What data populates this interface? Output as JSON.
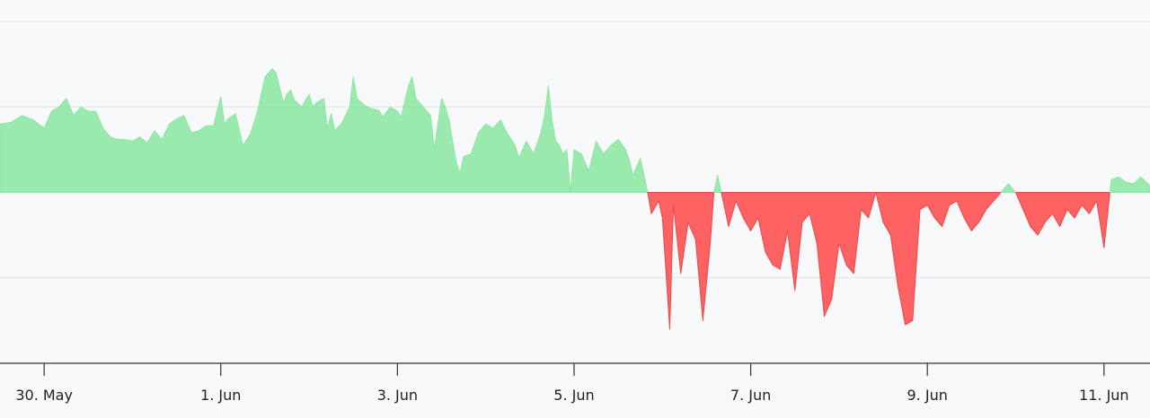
{
  "chart_data": {
    "type": "area",
    "x_axis": {
      "type": "date",
      "ticks": [
        {
          "date": "2024-05-30",
          "label": "30. May"
        },
        {
          "date": "2024-06-01",
          "label": "1. Jun"
        },
        {
          "date": "2024-06-03",
          "label": "3. Jun"
        },
        {
          "date": "2024-06-05",
          "label": "5. Jun"
        },
        {
          "date": "2024-06-07",
          "label": "7. Jun"
        },
        {
          "date": "2024-06-09",
          "label": "9. Jun"
        },
        {
          "date": "2024-06-11",
          "label": "11. Jun"
        }
      ],
      "range": [
        "2024-05-29T12:00",
        "2024-06-11T12:30"
      ]
    },
    "y_axis": {
      "range": [
        -2,
        2
      ],
      "gridlines": [
        2,
        1,
        0,
        -1
      ],
      "labels_visible": false
    },
    "grid": true,
    "legend": "none",
    "positive_color": "#7be495",
    "negative_color": "#ff5a5a",
    "series": [
      {
        "points": [
          [
            "2024-05-29T12:00",
            0.8
          ],
          [
            "2024-05-29T15:00",
            0.82
          ],
          [
            "2024-05-29T18:00",
            0.9
          ],
          [
            "2024-05-29T21:00",
            0.85
          ],
          [
            "2024-05-30T00:00",
            0.75
          ],
          [
            "2024-05-30T02:00",
            0.95
          ],
          [
            "2024-05-30T04:00",
            1.0
          ],
          [
            "2024-05-30T06:00",
            1.1
          ],
          [
            "2024-05-30T08:00",
            0.9
          ],
          [
            "2024-05-30T10:00",
            1.0
          ],
          [
            "2024-05-30T12:00",
            0.95
          ],
          [
            "2024-05-30T14:00",
            0.95
          ],
          [
            "2024-05-30T16:00",
            0.75
          ],
          [
            "2024-05-30T18:00",
            0.65
          ],
          [
            "2024-05-30T20:00",
            0.62
          ],
          [
            "2024-05-30T22:00",
            0.62
          ],
          [
            "2024-05-31T00:00",
            0.6
          ],
          [
            "2024-05-31T02:00",
            0.65
          ],
          [
            "2024-05-31T04:00",
            0.58
          ],
          [
            "2024-05-31T06:00",
            0.72
          ],
          [
            "2024-05-31T08:00",
            0.62
          ],
          [
            "2024-05-31T10:00",
            0.8
          ],
          [
            "2024-05-31T12:00",
            0.86
          ],
          [
            "2024-05-31T14:00",
            0.9
          ],
          [
            "2024-05-31T16:00",
            0.7
          ],
          [
            "2024-05-31T18:00",
            0.72
          ],
          [
            "2024-05-31T20:00",
            0.78
          ],
          [
            "2024-05-31T22:00",
            0.78
          ],
          [
            "2024-06-01T00:00",
            1.12
          ],
          [
            "2024-06-01T01:00",
            0.8
          ],
          [
            "2024-06-01T02:00",
            0.86
          ],
          [
            "2024-06-01T04:00",
            0.92
          ],
          [
            "2024-06-01T06:00",
            0.55
          ],
          [
            "2024-06-01T08:00",
            0.68
          ],
          [
            "2024-06-01T10:00",
            0.95
          ],
          [
            "2024-06-01T12:00",
            1.35
          ],
          [
            "2024-06-01T14:00",
            1.45
          ],
          [
            "2024-06-01T15:00",
            1.4
          ],
          [
            "2024-06-01T17:00",
            1.05
          ],
          [
            "2024-06-01T18:00",
            1.15
          ],
          [
            "2024-06-01T19:00",
            1.2
          ],
          [
            "2024-06-01T20:00",
            1.08
          ],
          [
            "2024-06-01T22:00",
            1.0
          ],
          [
            "2024-06-02T00:00",
            1.15
          ],
          [
            "2024-06-02T01:00",
            1.0
          ],
          [
            "2024-06-02T02:00",
            1.05
          ],
          [
            "2024-06-02T04:00",
            1.1
          ],
          [
            "2024-06-02T05:00",
            0.75
          ],
          [
            "2024-06-02T06:00",
            0.92
          ],
          [
            "2024-06-02T07:00",
            0.72
          ],
          [
            "2024-06-02T09:00",
            0.82
          ],
          [
            "2024-06-02T11:00",
            1.0
          ],
          [
            "2024-06-02T12:00",
            1.35
          ],
          [
            "2024-06-02T13:00",
            1.1
          ],
          [
            "2024-06-02T15:00",
            1.02
          ],
          [
            "2024-06-02T17:00",
            0.98
          ],
          [
            "2024-06-02T19:00",
            0.96
          ],
          [
            "2024-06-02T20:00",
            0.88
          ],
          [
            "2024-06-02T22:00",
            1.0
          ],
          [
            "2024-06-03T00:00",
            0.95
          ],
          [
            "2024-06-03T01:00",
            0.88
          ],
          [
            "2024-06-03T03:00",
            1.25
          ],
          [
            "2024-06-03T04:00",
            1.35
          ],
          [
            "2024-06-03T05:00",
            1.1
          ],
          [
            "2024-06-03T07:00",
            1.0
          ],
          [
            "2024-06-03T09:00",
            0.9
          ],
          [
            "2024-06-03T10:00",
            0.5
          ],
          [
            "2024-06-03T12:00",
            1.1
          ],
          [
            "2024-06-03T13:00",
            1.0
          ],
          [
            "2024-06-03T14:00",
            0.85
          ],
          [
            "2024-06-03T16:00",
            0.35
          ],
          [
            "2024-06-03T17:00",
            0.22
          ],
          [
            "2024-06-03T18:00",
            0.42
          ],
          [
            "2024-06-03T20:00",
            0.45
          ],
          [
            "2024-06-03T22:00",
            0.7
          ],
          [
            "2024-06-04T00:00",
            0.8
          ],
          [
            "2024-06-04T02:00",
            0.75
          ],
          [
            "2024-06-04T04:00",
            0.85
          ],
          [
            "2024-06-04T06:00",
            0.68
          ],
          [
            "2024-06-04T08:00",
            0.55
          ],
          [
            "2024-06-04T09:00",
            0.4
          ],
          [
            "2024-06-04T11:00",
            0.6
          ],
          [
            "2024-06-04T13:00",
            0.45
          ],
          [
            "2024-06-04T15:00",
            0.7
          ],
          [
            "2024-06-04T16:00",
            0.9
          ],
          [
            "2024-06-04T17:00",
            1.25
          ],
          [
            "2024-06-04T18:00",
            0.85
          ],
          [
            "2024-06-04T19:00",
            0.6
          ],
          [
            "2024-06-04T20:00",
            0.55
          ],
          [
            "2024-06-04T21:00",
            0.45
          ],
          [
            "2024-06-04T22:00",
            0.5
          ],
          [
            "2024-06-04T23:00",
            0.0
          ],
          [
            "2024-06-05T00:00",
            0.5
          ],
          [
            "2024-06-05T02:00",
            0.45
          ],
          [
            "2024-06-05T04:00",
            0.25
          ],
          [
            "2024-06-05T06:00",
            0.6
          ],
          [
            "2024-06-05T08:00",
            0.45
          ],
          [
            "2024-06-05T10:00",
            0.55
          ],
          [
            "2024-06-05T12:00",
            0.62
          ],
          [
            "2024-06-05T14:00",
            0.5
          ],
          [
            "2024-06-05T15:00",
            0.38
          ],
          [
            "2024-06-05T16:00",
            0.2
          ],
          [
            "2024-06-05T18:00",
            0.4
          ],
          [
            "2024-06-05T20:00",
            0.0
          ],
          [
            "2024-06-05T21:00",
            -0.25
          ],
          [
            "2024-06-05T23:00",
            -0.1
          ],
          [
            "2024-06-06T00:00",
            -0.3
          ],
          [
            "2024-06-06T02:00",
            -1.6
          ],
          [
            "2024-06-06T03:00",
            -0.15
          ],
          [
            "2024-06-06T05:00",
            -0.95
          ],
          [
            "2024-06-06T07:00",
            -0.35
          ],
          [
            "2024-06-06T09:00",
            -0.55
          ],
          [
            "2024-06-06T11:00",
            -1.5
          ],
          [
            "2024-06-06T13:00",
            -0.6
          ],
          [
            "2024-06-06T14:00",
            0.0
          ],
          [
            "2024-06-06T15:00",
            0.2
          ],
          [
            "2024-06-06T16:00",
            0.0
          ],
          [
            "2024-06-06T18:00",
            -0.4
          ],
          [
            "2024-06-06T20:00",
            -0.1
          ],
          [
            "2024-06-06T22:00",
            -0.3
          ],
          [
            "2024-06-07T00:00",
            -0.45
          ],
          [
            "2024-06-07T02:00",
            -0.3
          ],
          [
            "2024-06-07T04:00",
            -0.7
          ],
          [
            "2024-06-07T06:00",
            -0.85
          ],
          [
            "2024-06-07T08:00",
            -0.9
          ],
          [
            "2024-06-07T10:00",
            -0.45
          ],
          [
            "2024-06-07T12:00",
            -1.15
          ],
          [
            "2024-06-07T14:00",
            -0.35
          ],
          [
            "2024-06-07T16:00",
            -0.25
          ],
          [
            "2024-06-07T18:00",
            -0.6
          ],
          [
            "2024-06-07T20:00",
            -1.45
          ],
          [
            "2024-06-07T22:00",
            -1.25
          ],
          [
            "2024-06-08T00:00",
            -0.6
          ],
          [
            "2024-06-08T02:00",
            -0.85
          ],
          [
            "2024-06-08T04:00",
            -0.95
          ],
          [
            "2024-06-08T06:00",
            -0.2
          ],
          [
            "2024-06-08T08:00",
            -0.3
          ],
          [
            "2024-06-08T10:00",
            -0.0
          ],
          [
            "2024-06-08T12:00",
            -0.35
          ],
          [
            "2024-06-08T14:00",
            -0.5
          ],
          [
            "2024-06-08T16:00",
            -1.1
          ],
          [
            "2024-06-08T18:00",
            -1.55
          ],
          [
            "2024-06-08T20:00",
            -1.5
          ],
          [
            "2024-06-08T22:00",
            -0.2
          ],
          [
            "2024-06-09T00:00",
            -0.15
          ],
          [
            "2024-06-09T02:00",
            -0.3
          ],
          [
            "2024-06-09T04:00",
            -0.4
          ],
          [
            "2024-06-09T06:00",
            -0.15
          ],
          [
            "2024-06-09T08:00",
            -0.1
          ],
          [
            "2024-06-09T10:00",
            -0.3
          ],
          [
            "2024-06-09T12:00",
            -0.45
          ],
          [
            "2024-06-09T14:00",
            -0.35
          ],
          [
            "2024-06-09T16:00",
            -0.2
          ],
          [
            "2024-06-09T18:00",
            -0.1
          ],
          [
            "2024-06-09T20:00",
            0.0
          ],
          [
            "2024-06-09T22:00",
            0.1
          ],
          [
            "2024-06-10T00:00",
            0.0
          ],
          [
            "2024-06-10T02:00",
            -0.2
          ],
          [
            "2024-06-10T04:00",
            -0.4
          ],
          [
            "2024-06-10T06:00",
            -0.5
          ],
          [
            "2024-06-10T08:00",
            -0.35
          ],
          [
            "2024-06-10T10:00",
            -0.25
          ],
          [
            "2024-06-10T12:00",
            -0.4
          ],
          [
            "2024-06-10T14:00",
            -0.2
          ],
          [
            "2024-06-10T16:00",
            -0.3
          ],
          [
            "2024-06-10T18:00",
            -0.15
          ],
          [
            "2024-06-10T20:00",
            -0.25
          ],
          [
            "2024-06-10T22:00",
            -0.1
          ],
          [
            "2024-06-11T00:00",
            -0.65
          ],
          [
            "2024-06-11T02:00",
            0.15
          ],
          [
            "2024-06-11T04:00",
            0.18
          ],
          [
            "2024-06-11T06:00",
            0.12
          ],
          [
            "2024-06-11T08:00",
            0.1
          ],
          [
            "2024-06-11T10:00",
            0.18
          ],
          [
            "2024-06-11T12:30",
            0.08
          ]
        ]
      }
    ]
  }
}
